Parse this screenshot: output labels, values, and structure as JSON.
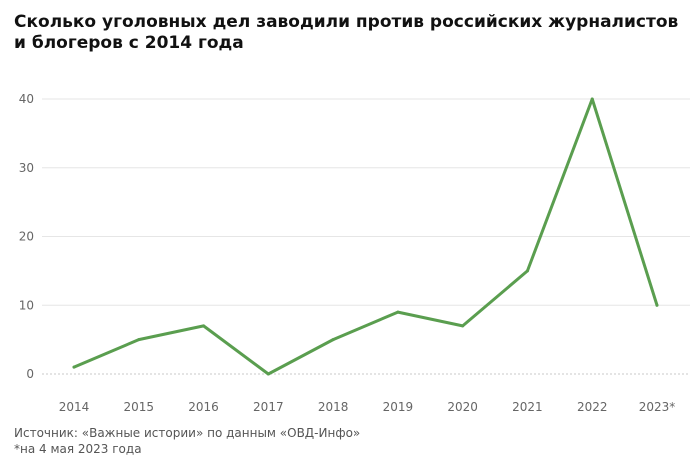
{
  "title": "Сколько уголовных дел заводили против российских журналистов и блогеров с 2014 года",
  "source": "Источник: «Важные истории» по данным «ОВД-Инфо»",
  "note": "*на 4 мая 2023 года",
  "colors": {
    "line": "#5a9e4f",
    "grid": "#e6e6e6",
    "zero_line": "#c8c8c8",
    "tick_text": "#666666"
  },
  "chart_data": {
    "type": "line",
    "categories": [
      "2014",
      "2015",
      "2016",
      "2017",
      "2018",
      "2019",
      "2020",
      "2021",
      "2022",
      "2023*"
    ],
    "values": [
      1,
      5,
      7,
      0,
      5,
      9,
      7,
      15,
      40,
      10
    ],
    "yticks": [
      0,
      10,
      20,
      30,
      40
    ],
    "ylim": [
      0,
      40
    ],
    "grid": true,
    "title": "Сколько уголовных дел заводили против российских журналистов и блогеров с 2014 года",
    "xlabel": "",
    "ylabel": ""
  }
}
